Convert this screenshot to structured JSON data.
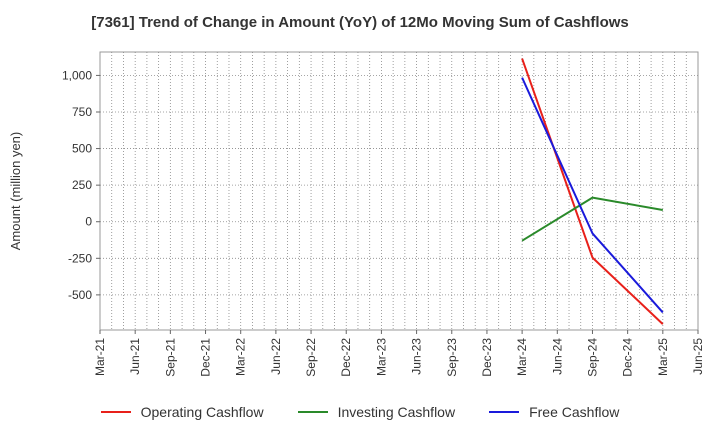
{
  "chart_data": {
    "type": "line",
    "title": "[7361]  Trend of Change in Amount (YoY) of 12Mo Moving Sum of Cashflows",
    "ylabel": "Amount (million yen)",
    "xlabel": "",
    "x_ticks": [
      "Mar-21",
      "Jun-21",
      "Sep-21",
      "Dec-21",
      "Mar-22",
      "Jun-22",
      "Sep-22",
      "Dec-22",
      "Mar-23",
      "Jun-23",
      "Sep-23",
      "Dec-23",
      "Mar-24",
      "Jun-24",
      "Sep-24",
      "Dec-24",
      "Mar-25",
      "Jun-25"
    ],
    "y_ticks": [
      -500,
      -250,
      0,
      250,
      500,
      750,
      1000
    ],
    "y_tick_labels": [
      "-500",
      "-250",
      "0",
      "250",
      "500",
      "750",
      "1,000"
    ],
    "ylim": [
      -740,
      1160
    ],
    "grid": true,
    "legend_position": "bottom",
    "x": [
      "Mar-24",
      "Sep-24",
      "Mar-25"
    ],
    "series": [
      {
        "name": "Operating Cashflow",
        "color": "#e8201a",
        "values": [
          1115,
          -245,
          -700
        ]
      },
      {
        "name": "Investing Cashflow",
        "color": "#2a8a2a",
        "values": [
          -130,
          165,
          80
        ]
      },
      {
        "name": "Free Cashflow",
        "color": "#1a1adb",
        "values": [
          985,
          -80,
          -620
        ]
      }
    ]
  }
}
